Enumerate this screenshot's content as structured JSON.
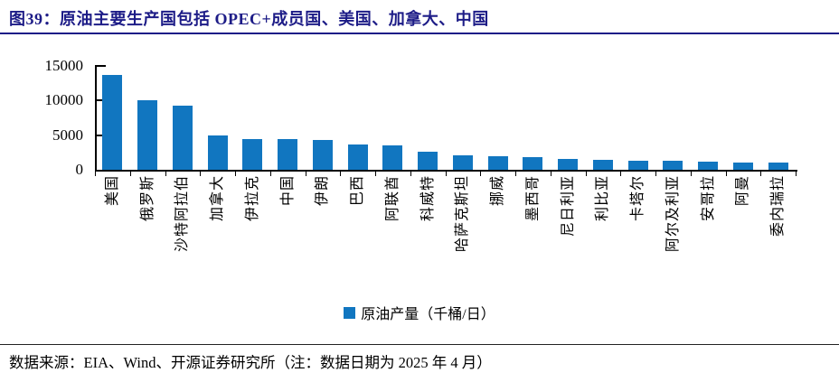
{
  "header": {
    "title": "图39：原油主要生产国包括 OPEC+成员国、美国、加拿大、中国"
  },
  "chart_data": {
    "type": "bar",
    "title": "图39：原油主要生产国包括 OPEC+成员国、美国、加拿大、中国",
    "categories": [
      "美国",
      "俄罗斯",
      "沙特阿拉伯",
      "加拿大",
      "伊拉克",
      "中国",
      "伊朗",
      "巴西",
      "阿联酋",
      "科威特",
      "哈萨克斯坦",
      "挪威",
      "墨西哥",
      "尼日利亚",
      "利比亚",
      "卡塔尔",
      "阿尔及利亚",
      "安哥拉",
      "阿曼",
      "委内瑞拉"
    ],
    "values": [
      13700,
      10000,
      9300,
      4950,
      4430,
      4400,
      4280,
      3650,
      3580,
      2550,
      2050,
      1900,
      1820,
      1520,
      1420,
      1340,
      1260,
      1140,
      1060,
      1030
    ],
    "legend": "原油产量（千桶/日）",
    "xlabel": "",
    "ylabel": "",
    "ylim": [
      0,
      15000
    ],
    "yticks": [
      0,
      5000,
      10000,
      15000
    ],
    "grid": false,
    "legend_position": "bottom",
    "bar_color": "#1176c0"
  },
  "footer": {
    "source": "数据来源：EIA、Wind、开源证券研究所（注：数据日期为 2025 年 4 月）"
  },
  "colors": {
    "title_navy": "#1d1c87",
    "bar_blue": "#1176c0",
    "axis_black": "#000000"
  }
}
